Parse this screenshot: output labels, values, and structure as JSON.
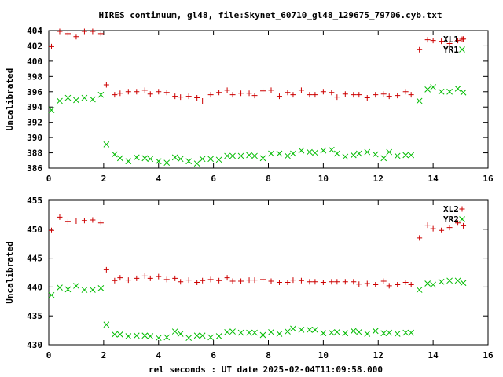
{
  "title": "HIRES continuum, gl48, file:Skynet_60710_gl48_129675_79706.cyb.txt",
  "xlabel": "rel seconds : UT date 2025-02-04T11:09:58.000",
  "colors": {
    "red": "#cc0000",
    "green": "#00bb00"
  },
  "chart_data": [
    {
      "type": "scatter",
      "ylabel": "Uncalibrated",
      "xlim": [
        0,
        16
      ],
      "ylim": [
        386,
        404
      ],
      "xticks": [
        0,
        2,
        4,
        6,
        8,
        10,
        12,
        14,
        16
      ],
      "yticks": [
        386,
        388,
        390,
        392,
        394,
        396,
        398,
        400,
        402,
        404
      ],
      "legend_position": "top-right",
      "series": [
        {
          "name": "XL1",
          "marker": "plus",
          "color": "#cc0000",
          "x": [
            0.1,
            0.4,
            0.7,
            1.0,
            1.3,
            1.6,
            1.9,
            2.1,
            2.4,
            2.6,
            2.9,
            3.2,
            3.5,
            3.7,
            4.0,
            4.3,
            4.6,
            4.8,
            5.1,
            5.4,
            5.6,
            5.9,
            6.2,
            6.5,
            6.7,
            7.0,
            7.3,
            7.5,
            7.8,
            8.1,
            8.4,
            8.7,
            8.9,
            9.2,
            9.5,
            9.7,
            10.0,
            10.3,
            10.5,
            10.8,
            11.1,
            11.3,
            11.6,
            11.9,
            12.2,
            12.4,
            12.7,
            13.0,
            13.2,
            13.5,
            13.8,
            14.0,
            14.3,
            14.6,
            14.9,
            15.1
          ],
          "y": [
            401.9,
            403.9,
            403.6,
            403.2,
            403.9,
            403.9,
            403.6,
            396.9,
            395.6,
            395.8,
            396.0,
            396.0,
            396.2,
            395.7,
            396.0,
            395.9,
            395.4,
            395.3,
            395.4,
            395.2,
            394.8,
            395.6,
            395.9,
            396.2,
            395.6,
            395.8,
            395.8,
            395.5,
            396.1,
            396.2,
            395.4,
            395.9,
            395.6,
            396.2,
            395.6,
            395.6,
            396.0,
            395.9,
            395.3,
            395.7,
            395.6,
            395.6,
            395.2,
            395.6,
            395.7,
            395.4,
            395.5,
            396.0,
            395.6,
            401.5,
            402.8,
            402.7,
            402.6,
            402.3,
            402.7,
            402.9
          ]
        },
        {
          "name": "YR1",
          "marker": "cross",
          "color": "#00bb00",
          "x": [
            0.1,
            0.4,
            0.7,
            1.0,
            1.3,
            1.6,
            1.9,
            2.1,
            2.4,
            2.6,
            2.9,
            3.2,
            3.5,
            3.7,
            4.0,
            4.3,
            4.6,
            4.8,
            5.1,
            5.4,
            5.6,
            5.9,
            6.2,
            6.5,
            6.7,
            7.0,
            7.3,
            7.5,
            7.8,
            8.1,
            8.4,
            8.7,
            8.9,
            9.2,
            9.5,
            9.7,
            10.0,
            10.3,
            10.5,
            10.8,
            11.1,
            11.3,
            11.6,
            11.9,
            12.2,
            12.4,
            12.7,
            13.0,
            13.2,
            13.5,
            13.8,
            14.0,
            14.3,
            14.6,
            14.9,
            15.1
          ],
          "y": [
            393.6,
            394.8,
            395.2,
            394.9,
            395.2,
            395.0,
            395.6,
            389.1,
            387.8,
            387.3,
            386.9,
            387.4,
            387.3,
            387.2,
            386.9,
            386.7,
            387.4,
            387.2,
            386.9,
            386.6,
            387.2,
            387.2,
            387.1,
            387.6,
            387.6,
            387.6,
            387.7,
            387.6,
            387.3,
            387.9,
            387.9,
            387.6,
            387.9,
            388.3,
            388.1,
            388.0,
            388.3,
            388.4,
            387.9,
            387.5,
            387.7,
            387.9,
            388.1,
            387.8,
            387.3,
            388.1,
            387.6,
            387.7,
            387.7,
            394.8,
            396.3,
            396.6,
            396.0,
            396.0,
            396.4,
            395.9
          ]
        }
      ]
    },
    {
      "type": "scatter",
      "ylabel": "Uncalibrated",
      "xlim": [
        0,
        16
      ],
      "ylim": [
        430,
        455
      ],
      "xticks": [
        0,
        2,
        4,
        6,
        8,
        10,
        12,
        14,
        16
      ],
      "yticks": [
        430,
        435,
        440,
        445,
        450,
        455
      ],
      "legend_position": "top-right",
      "series": [
        {
          "name": "XL2",
          "marker": "plus",
          "color": "#cc0000",
          "x": [
            0.1,
            0.4,
            0.7,
            1.0,
            1.3,
            1.6,
            1.9,
            2.1,
            2.4,
            2.6,
            2.9,
            3.2,
            3.5,
            3.7,
            4.0,
            4.3,
            4.6,
            4.8,
            5.1,
            5.4,
            5.6,
            5.9,
            6.2,
            6.5,
            6.7,
            7.0,
            7.3,
            7.5,
            7.8,
            8.1,
            8.4,
            8.7,
            8.9,
            9.2,
            9.5,
            9.7,
            10.0,
            10.3,
            10.5,
            10.8,
            11.1,
            11.3,
            11.6,
            11.9,
            12.2,
            12.4,
            12.7,
            13.0,
            13.2,
            13.5,
            13.8,
            14.0,
            14.3,
            14.6,
            14.9,
            15.1
          ],
          "y": [
            449.8,
            452.1,
            451.3,
            451.4,
            451.5,
            451.6,
            451.1,
            443.0,
            441.1,
            441.6,
            441.2,
            441.5,
            441.9,
            441.5,
            441.8,
            441.3,
            441.5,
            440.9,
            441.2,
            440.8,
            441.1,
            441.3,
            441.1,
            441.6,
            441.0,
            441.0,
            441.2,
            441.2,
            441.3,
            441.0,
            440.8,
            440.8,
            441.2,
            441.1,
            440.9,
            440.9,
            440.8,
            440.9,
            440.9,
            440.9,
            440.9,
            440.5,
            440.6,
            440.4,
            441.0,
            440.2,
            440.4,
            440.8,
            440.4,
            448.5,
            450.7,
            450.1,
            449.8,
            450.3,
            451.1,
            450.6
          ]
        },
        {
          "name": "YR2",
          "marker": "cross",
          "color": "#00bb00",
          "x": [
            0.1,
            0.4,
            0.7,
            1.0,
            1.3,
            1.6,
            1.9,
            2.1,
            2.4,
            2.6,
            2.9,
            3.2,
            3.5,
            3.7,
            4.0,
            4.3,
            4.6,
            4.8,
            5.1,
            5.4,
            5.6,
            5.9,
            6.2,
            6.5,
            6.7,
            7.0,
            7.3,
            7.5,
            7.8,
            8.1,
            8.4,
            8.7,
            8.9,
            9.2,
            9.5,
            9.7,
            10.0,
            10.3,
            10.5,
            10.8,
            11.1,
            11.3,
            11.6,
            11.9,
            12.2,
            12.4,
            12.7,
            13.0,
            13.2,
            13.5,
            13.8,
            14.0,
            14.3,
            14.6,
            14.9,
            15.1
          ],
          "y": [
            438.6,
            439.9,
            439.6,
            440.2,
            439.5,
            439.5,
            439.8,
            433.5,
            431.8,
            431.8,
            431.5,
            431.6,
            431.6,
            431.5,
            431.2,
            431.3,
            432.3,
            431.9,
            431.2,
            431.6,
            431.6,
            431.3,
            431.5,
            432.2,
            432.3,
            432.1,
            432.1,
            432.1,
            431.7,
            432.2,
            431.9,
            432.3,
            432.8,
            432.6,
            432.6,
            432.6,
            432.0,
            432.1,
            432.2,
            432.0,
            432.4,
            432.2,
            431.9,
            432.4,
            432.0,
            432.1,
            431.9,
            432.1,
            432.1,
            439.5,
            440.6,
            440.4,
            440.9,
            441.1,
            441.1,
            440.7
          ]
        }
      ]
    }
  ]
}
